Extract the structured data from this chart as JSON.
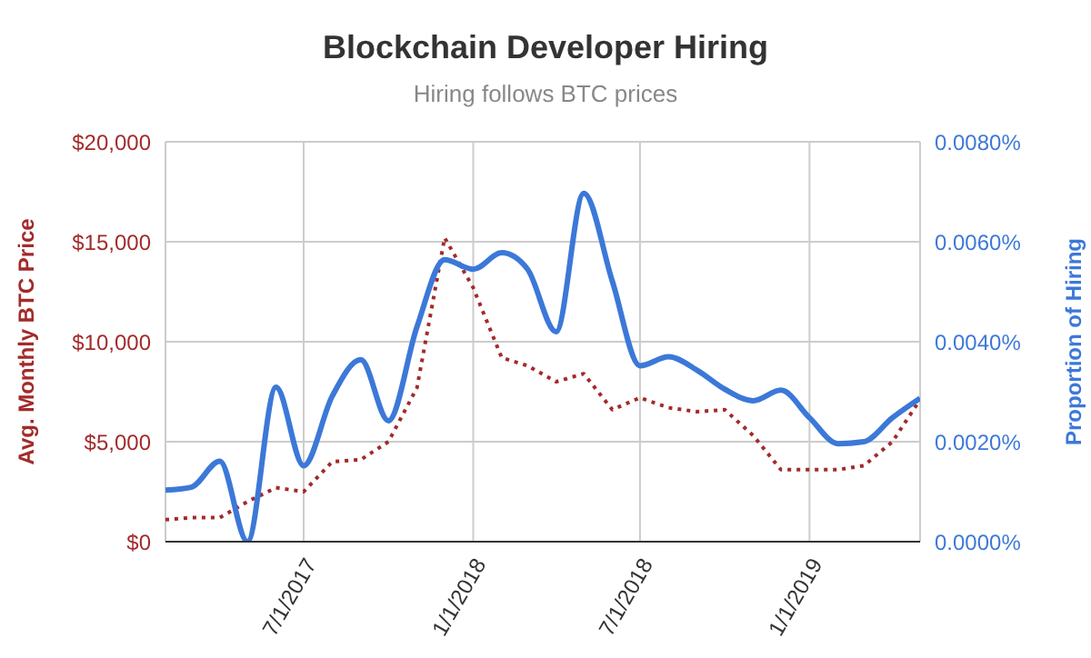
{
  "chart_data": {
    "type": "line",
    "title": "Blockchain Developer Hiring",
    "subtitle": "Hiring follows BTC prices",
    "ylabel": "Avg. Monthly BTC Price",
    "y2label": "Proportion of Hiring",
    "x": [
      "2017-02-01",
      "2017-03-01",
      "2017-04-01",
      "2017-05-01",
      "2017-06-01",
      "2017-07-01",
      "2017-08-01",
      "2017-09-01",
      "2017-10-01",
      "2017-11-01",
      "2017-12-01",
      "2018-01-01",
      "2018-02-01",
      "2018-03-01",
      "2018-04-01",
      "2018-05-01",
      "2018-06-01",
      "2018-07-01",
      "2018-08-01",
      "2018-09-01",
      "2018-10-01",
      "2018-11-01",
      "2018-12-01",
      "2019-01-01",
      "2019-02-01",
      "2019-03-01",
      "2019-04-01",
      "2019-05-01"
    ],
    "series": [
      {
        "color": "#a32a2a",
        "line_style": "dotted",
        "axis": "y",
        "values": [
          1100,
          1200,
          1200,
          2000,
          2700,
          2500,
          4000,
          4100,
          5000,
          7700,
          15200,
          12700,
          9200,
          8800,
          8000,
          8400,
          6600,
          7200,
          6700,
          6500,
          6600,
          5300,
          3600,
          3600,
          3600,
          3800,
          5000,
          7100
        ]
      },
      {
        "color": "#3c78d8",
        "line_style": "solid",
        "axis": "y2",
        "values": [
          0.00103,
          0.00109,
          0.00161,
          0.0,
          0.00309,
          0.00152,
          0.00291,
          0.00364,
          0.00242,
          0.0043,
          0.00564,
          0.00545,
          0.00578,
          0.00545,
          0.0042,
          0.00697,
          0.00521,
          0.00352,
          0.0037,
          0.00343,
          0.00305,
          0.00282,
          0.00303,
          0.00248,
          0.00196,
          0.002,
          0.00248,
          0.00287
        ]
      }
    ],
    "xlim": [
      "2017-02-01",
      "2019-05-01"
    ],
    "xticks": [
      {
        "value": "2017-07-01",
        "label": "7/1/2017"
      },
      {
        "value": "2018-01-01",
        "label": "1/1/2018"
      },
      {
        "value": "2018-07-01",
        "label": "7/1/2018"
      },
      {
        "value": "2019-01-01",
        "label": "1/1/2019"
      }
    ],
    "ylim": [
      0,
      20000
    ],
    "yticks": [
      {
        "value": 0,
        "label": "$0"
      },
      {
        "value": 5000,
        "label": "$5,000"
      },
      {
        "value": 10000,
        "label": "$10,000"
      },
      {
        "value": 15000,
        "label": "$15,000"
      },
      {
        "value": 20000,
        "label": "$20,000"
      }
    ],
    "y2lim": [
      0,
      0.008
    ],
    "y2ticks": [
      {
        "value": 0,
        "label": "0.0000%"
      },
      {
        "value": 0.002,
        "label": "0.0020%"
      },
      {
        "value": 0.004,
        "label": "0.0040%"
      },
      {
        "value": 0.006,
        "label": "0.0060%"
      },
      {
        "value": 0.008,
        "label": "0.0080%"
      }
    ],
    "grid": true,
    "marker": "none",
    "legend": false
  }
}
